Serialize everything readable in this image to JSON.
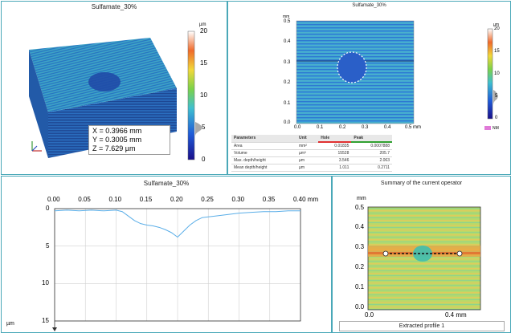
{
  "panels": {
    "top_left": {
      "title": "Sulfamate_30%",
      "unit": "µm",
      "scale_ticks": [
        "20",
        "15",
        "10",
        "5",
        "0"
      ],
      "readout": {
        "x": "X = 0.3966 mm",
        "y": "Y = 0.3005 mm",
        "z": "Z = 7.629 µm"
      }
    },
    "top_right": {
      "title": "Sulfamate_30%",
      "y_unit": "mm",
      "x_ticks": [
        "0.0",
        "0.1",
        "0.2",
        "0.3",
        "0.4",
        "0.5 mm"
      ],
      "y_ticks": [
        "0.5",
        "0.4",
        "0.3",
        "0.2",
        "0.1",
        "0.0"
      ],
      "unit": "µm",
      "scale_ticks": [
        "20",
        "15",
        "10",
        "5",
        "0"
      ],
      "nm_label": "NM",
      "table": {
        "headers": [
          "Parameters",
          "Unit",
          "Hole",
          "Peak"
        ],
        "rows": [
          [
            "Area",
            "mm²",
            "0.01835",
            "0.0007888"
          ],
          [
            "Volume",
            "µm³",
            "15528",
            "205.7"
          ],
          [
            "Max. depth/height",
            "µm",
            "3.546",
            "2.063"
          ],
          [
            "Mean depth/height",
            "µm",
            "1.011",
            "0.2711"
          ]
        ]
      }
    },
    "bottom_left": {
      "title": "Sulfamate_30%",
      "x_ticks": [
        "0.00",
        "0.05",
        "0.10",
        "0.15",
        "0.20",
        "0.25",
        "0.30",
        "0.35",
        "0.40 mm"
      ],
      "y_ticks": [
        "0",
        "5",
        "10",
        "15"
      ],
      "y_unit": "µm"
    },
    "bottom_right": {
      "title": "Summary of the current operator",
      "y_unit": "mm",
      "y_ticks": [
        "0.5",
        "0.4",
        "0.3",
        "0.2",
        "0.1",
        "0.0"
      ],
      "x_ticks": [
        "0.0",
        "0.4 mm"
      ],
      "extracted_label": "Extracted profile 1"
    }
  },
  "chart_data": {
    "type": "line",
    "title": "Sulfamate_30%",
    "xlabel": "mm",
    "ylabel": "µm",
    "xlim": [
      0,
      0.4
    ],
    "ylim": [
      0,
      15
    ],
    "y_inverted": true,
    "x": [
      0.0,
      0.02,
      0.04,
      0.06,
      0.08,
      0.1,
      0.11,
      0.12,
      0.13,
      0.14,
      0.15,
      0.16,
      0.17,
      0.18,
      0.19,
      0.2,
      0.21,
      0.22,
      0.23,
      0.24,
      0.26,
      0.28,
      0.3,
      0.32,
      0.34,
      0.36,
      0.38,
      0.4
    ],
    "values": [
      0.3,
      0.2,
      0.3,
      0.2,
      0.3,
      0.2,
      0.4,
      1.0,
      1.6,
      2.0,
      2.2,
      2.3,
      2.5,
      2.8,
      3.2,
      3.8,
      3.0,
      2.2,
      1.6,
      1.2,
      1.0,
      0.8,
      0.6,
      0.5,
      0.4,
      0.4,
      0.3,
      0.3
    ],
    "grid": true
  }
}
